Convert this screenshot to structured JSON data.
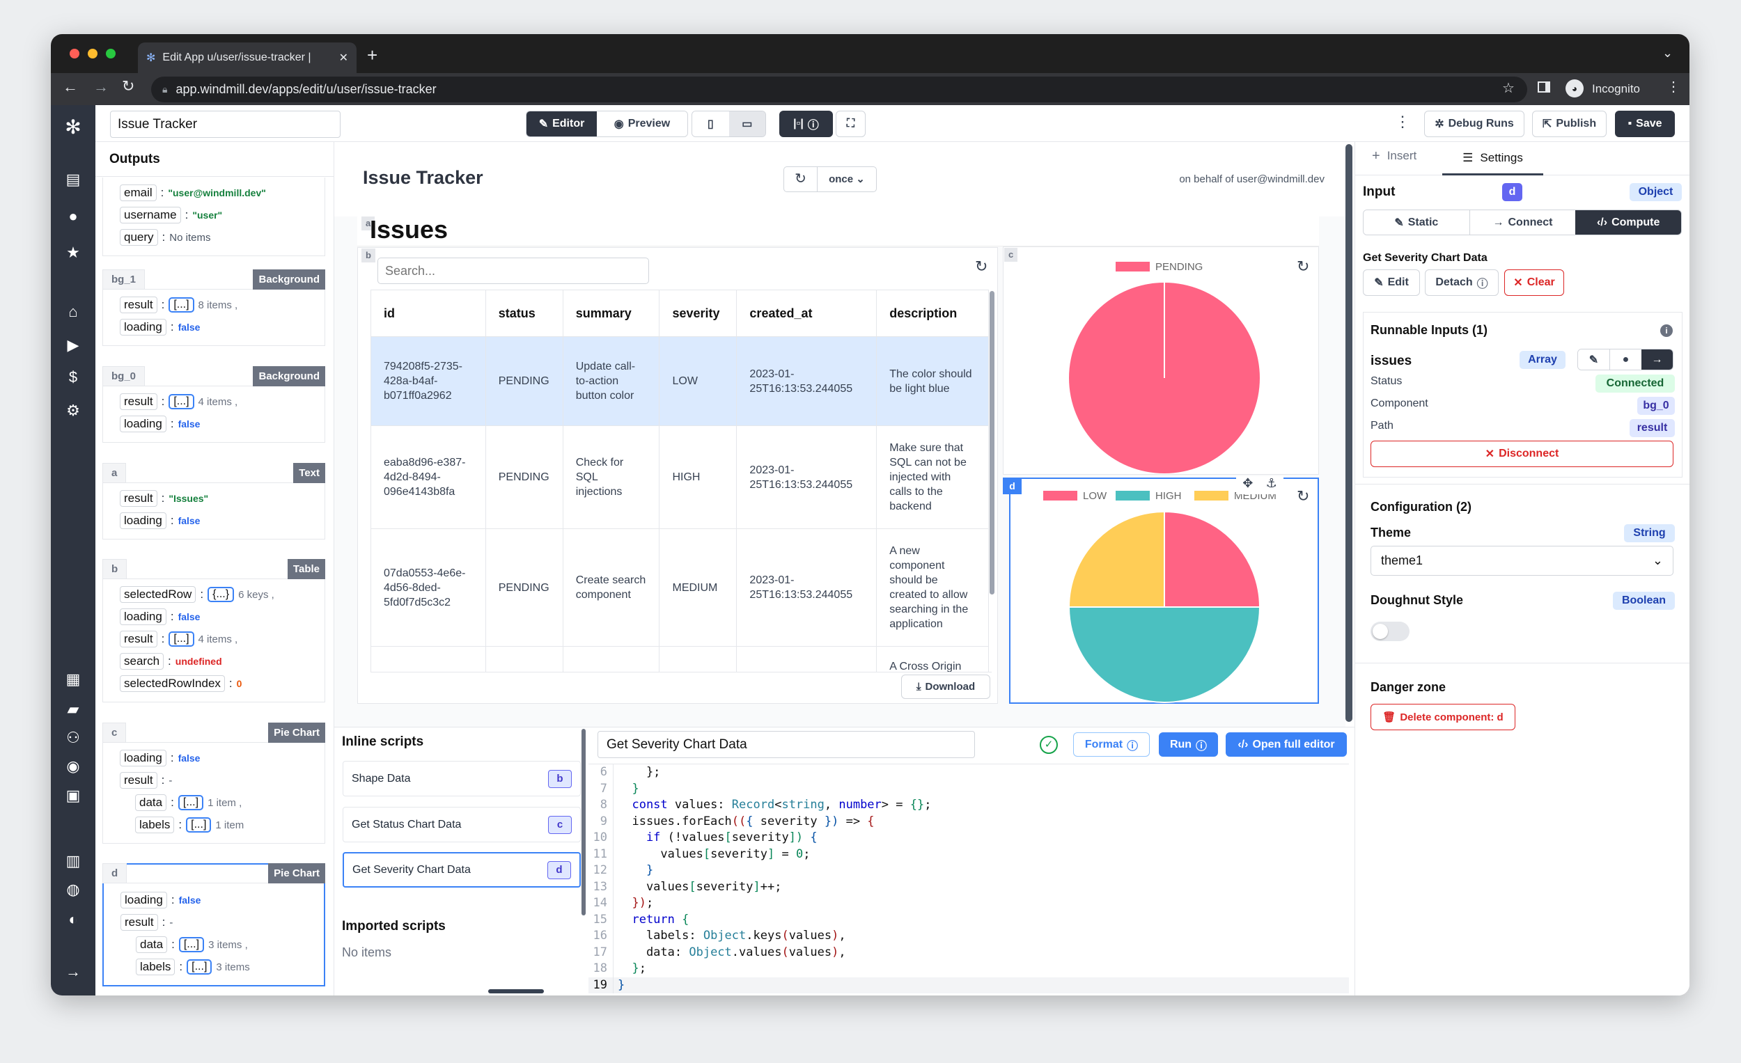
{
  "browser": {
    "tab_title": "Edit App u/user/issue-tracker |",
    "url": "app.windmill.dev/apps/edit/u/user/issue-tracker",
    "profile": "Incognito"
  },
  "topbar": {
    "app_name": "Issue Tracker",
    "editor": "Editor",
    "preview": "Preview",
    "debug_runs": "Debug Runs",
    "publish": "Publish",
    "save": "Save"
  },
  "outputs": {
    "title": "Outputs",
    "sections": [
      {
        "id": "",
        "type": "",
        "rows": [
          {
            "key": "email",
            "kind": "string",
            "value": "\"user@windmill.dev\""
          },
          {
            "key": "username",
            "kind": "string",
            "value": "\"user\""
          },
          {
            "key": "query",
            "kind": "plain",
            "value": "No items"
          }
        ]
      },
      {
        "id": "bg_1",
        "type": "Background",
        "rows": [
          {
            "key": "result",
            "kind": "collapsed",
            "value": "[...]",
            "extra": "8 items ,"
          },
          {
            "key": "loading",
            "kind": "bool",
            "value": "false"
          }
        ]
      },
      {
        "id": "bg_0",
        "type": "Background",
        "rows": [
          {
            "key": "result",
            "kind": "collapsed",
            "value": "[...]",
            "extra": "4 items ,"
          },
          {
            "key": "loading",
            "kind": "bool",
            "value": "false"
          }
        ]
      },
      {
        "id": "a",
        "type": "Text",
        "rows": [
          {
            "key": "result",
            "kind": "string",
            "value": "\"Issues\""
          },
          {
            "key": "loading",
            "kind": "bool",
            "value": "false"
          }
        ]
      },
      {
        "id": "b",
        "type": "Table",
        "rows": [
          {
            "key": "selectedRow",
            "kind": "collapsed",
            "value": "{...}",
            "extra": "6 keys ,"
          },
          {
            "key": "loading",
            "kind": "bool",
            "value": "false"
          },
          {
            "key": "result",
            "kind": "collapsed",
            "value": "[...]",
            "extra": "4 items ,"
          },
          {
            "key": "search",
            "kind": "undefined",
            "value": "undefined"
          },
          {
            "key": "selectedRowIndex",
            "kind": "number",
            "value": "0"
          }
        ]
      },
      {
        "id": "c",
        "type": "Pie Chart",
        "rows": [
          {
            "key": "loading",
            "kind": "bool",
            "value": "false"
          },
          {
            "key": "result",
            "kind": "plain",
            "value": "-"
          },
          {
            "key": "data",
            "kind": "collapsed",
            "value": "[...]",
            "extra": "1 item ,",
            "indent": true
          },
          {
            "key": "labels",
            "kind": "collapsed",
            "value": "[...]",
            "extra": "1 item",
            "indent": true
          }
        ]
      },
      {
        "id": "d",
        "type": "Pie Chart",
        "selected": true,
        "rows": [
          {
            "key": "loading",
            "kind": "bool",
            "value": "false"
          },
          {
            "key": "result",
            "kind": "plain",
            "value": "-"
          },
          {
            "key": "data",
            "kind": "collapsed",
            "value": "[...]",
            "extra": "3 items ,",
            "indent": true
          },
          {
            "key": "labels",
            "kind": "collapsed",
            "value": "[...]",
            "extra": "3 items",
            "indent": true
          }
        ]
      }
    ]
  },
  "canvas": {
    "title": "Issue Tracker",
    "refresh_mode": "once",
    "on_behalf": "on behalf of user@windmill.dev",
    "text_component": {
      "id": "a",
      "text": "Issues"
    },
    "table": {
      "id": "b",
      "search_placeholder": "Search...",
      "columns": [
        "id",
        "status",
        "summary",
        "severity",
        "created_at",
        "description"
      ],
      "rows": [
        [
          "794208f5-2735-428a-b4af-b071ff0a2962",
          "PENDING",
          "Update call-to-action button color",
          "LOW",
          "2023-01-25T16:13:53.244055",
          "The color should be light blue"
        ],
        [
          "eaba8d96-e387-4d2d-8494-096e4143b8fa",
          "PENDING",
          "Check for SQL injections",
          "HIGH",
          "2023-01-25T16:13:53.244055",
          "Make sure that SQL can not be injected with calls to the backend"
        ],
        [
          "07da0553-4e6e-4d56-8ded-5fd0f7d5c3c2",
          "PENDING",
          "Create search component",
          "MEDIUM",
          "2023-01-25T16:13:53.244055",
          "A new component should be created to allow searching in the application"
        ],
        [
          "",
          "",
          "",
          "",
          "",
          "A Cross Origin"
        ]
      ],
      "selected_row": 0,
      "download": "Download"
    }
  },
  "chart_data": [
    {
      "type": "pie",
      "id": "c",
      "labels": [
        "PENDING"
      ],
      "values": [
        4
      ],
      "colors": [
        "#ff6384"
      ],
      "legend": "top"
    },
    {
      "type": "pie",
      "id": "d",
      "labels": [
        "LOW",
        "HIGH",
        "MEDIUM"
      ],
      "values": [
        1,
        2,
        1
      ],
      "colors": [
        "#ff6384",
        "#4bc0c0",
        "#ffcd56"
      ],
      "legend": "top"
    }
  ],
  "inline_scripts": {
    "title": "Inline scripts",
    "items": [
      {
        "name": "Shape Data",
        "badge": "b"
      },
      {
        "name": "Get Status Chart Data",
        "badge": "c"
      },
      {
        "name": "Get Severity Chart Data",
        "badge": "d",
        "selected": true
      }
    ],
    "imported_title": "Imported scripts",
    "imported_empty": "No items"
  },
  "editor": {
    "script_name": "Get Severity Chart Data",
    "format": "Format",
    "run": "Run",
    "open_full": "Open full editor",
    "lines": [
      {
        "n": "6",
        "t": [
          [
            "    };",
            "plain"
          ]
        ]
      },
      {
        "n": "7",
        "t": [
          [
            "  }",
            "br"
          ]
        ]
      },
      {
        "n": "8",
        "t": [
          [
            "  const",
            "kw"
          ],
          [
            " values: ",
            "plain"
          ],
          [
            "Record",
            "type"
          ],
          [
            "<",
            "plain"
          ],
          [
            "string",
            "type"
          ],
          [
            ", ",
            "plain"
          ],
          [
            "number",
            "kw"
          ],
          [
            "> = ",
            "plain"
          ],
          [
            "{}",
            "br"
          ],
          [
            ";",
            "plain"
          ]
        ]
      },
      {
        "n": "9",
        "t": [
          [
            "  issues.forEach",
            "plain"
          ],
          [
            "((",
            "br2"
          ],
          [
            "{ ",
            "br3"
          ],
          [
            "severity ",
            "plain"
          ],
          [
            "})",
            "br3"
          ],
          [
            " => ",
            "plain"
          ],
          [
            "{",
            "br2"
          ]
        ]
      },
      {
        "n": "10",
        "t": [
          [
            "    if",
            "kw"
          ],
          [
            " (!values",
            "plain"
          ],
          [
            "[",
            "br"
          ],
          [
            "severity",
            "plain"
          ],
          [
            "])",
            "br"
          ],
          [
            " {",
            "br3"
          ]
        ]
      },
      {
        "n": "11",
        "t": [
          [
            "      values",
            "plain"
          ],
          [
            "[",
            "br"
          ],
          [
            "severity",
            "plain"
          ],
          [
            "]",
            "br"
          ],
          [
            " = ",
            "plain"
          ],
          [
            "0",
            "br"
          ],
          [
            ";",
            "plain"
          ]
        ]
      },
      {
        "n": "12",
        "t": [
          [
            "    }",
            "br3"
          ]
        ]
      },
      {
        "n": "13",
        "t": [
          [
            "    values",
            "plain"
          ],
          [
            "[",
            "br"
          ],
          [
            "severity",
            "plain"
          ],
          [
            "]",
            "br"
          ],
          [
            "++;",
            "plain"
          ]
        ]
      },
      {
        "n": "14",
        "t": [
          [
            "  })",
            "br2"
          ],
          [
            ";",
            "plain"
          ]
        ]
      },
      {
        "n": "15",
        "t": [
          [
            "  return",
            "kw"
          ],
          [
            " {",
            "br"
          ]
        ]
      },
      {
        "n": "16",
        "t": [
          [
            "    labels: ",
            "plain"
          ],
          [
            "Object",
            "type"
          ],
          [
            ".keys",
            "plain"
          ],
          [
            "(",
            "br2"
          ],
          [
            "values",
            "plain"
          ],
          [
            ")",
            "br2"
          ],
          [
            ",",
            "plain"
          ]
        ]
      },
      {
        "n": "17",
        "t": [
          [
            "    data: ",
            "plain"
          ],
          [
            "Object",
            "type"
          ],
          [
            ".values",
            "plain"
          ],
          [
            "(",
            "br2"
          ],
          [
            "values",
            "plain"
          ],
          [
            ")",
            "br2"
          ],
          [
            ",",
            "plain"
          ]
        ]
      },
      {
        "n": "18",
        "t": [
          [
            "  }",
            "br"
          ],
          [
            ";",
            "plain"
          ]
        ]
      },
      {
        "n": "19",
        "t": [
          [
            "}",
            "br3"
          ]
        ]
      }
    ]
  },
  "right_panel": {
    "tabs": [
      "Insert",
      "Settings"
    ],
    "input_label": "Input",
    "component_id": "d",
    "input_type": "Object",
    "modes": [
      "Static",
      "Connect",
      "Compute"
    ],
    "active_mode": "Compute",
    "script_name": "Get Severity Chart Data",
    "edit": "Edit",
    "detach": "Detach",
    "clear": "Clear",
    "runnable_title": "Runnable Inputs (1)",
    "input_name": "issues",
    "input_name_type": "Array",
    "status_label": "Status",
    "status_value": "Connected",
    "component_label": "Component",
    "component_value": "bg_0",
    "path_label": "Path",
    "path_value": "result",
    "disconnect": "Disconnect",
    "config_title": "Configuration (2)",
    "theme_label": "Theme",
    "theme_type": "String",
    "theme_value": "theme1",
    "doughnut_label": "Doughnut Style",
    "doughnut_type": "Boolean",
    "doughnut_value": false,
    "danger_title": "Danger zone",
    "delete": "Delete component: d"
  }
}
